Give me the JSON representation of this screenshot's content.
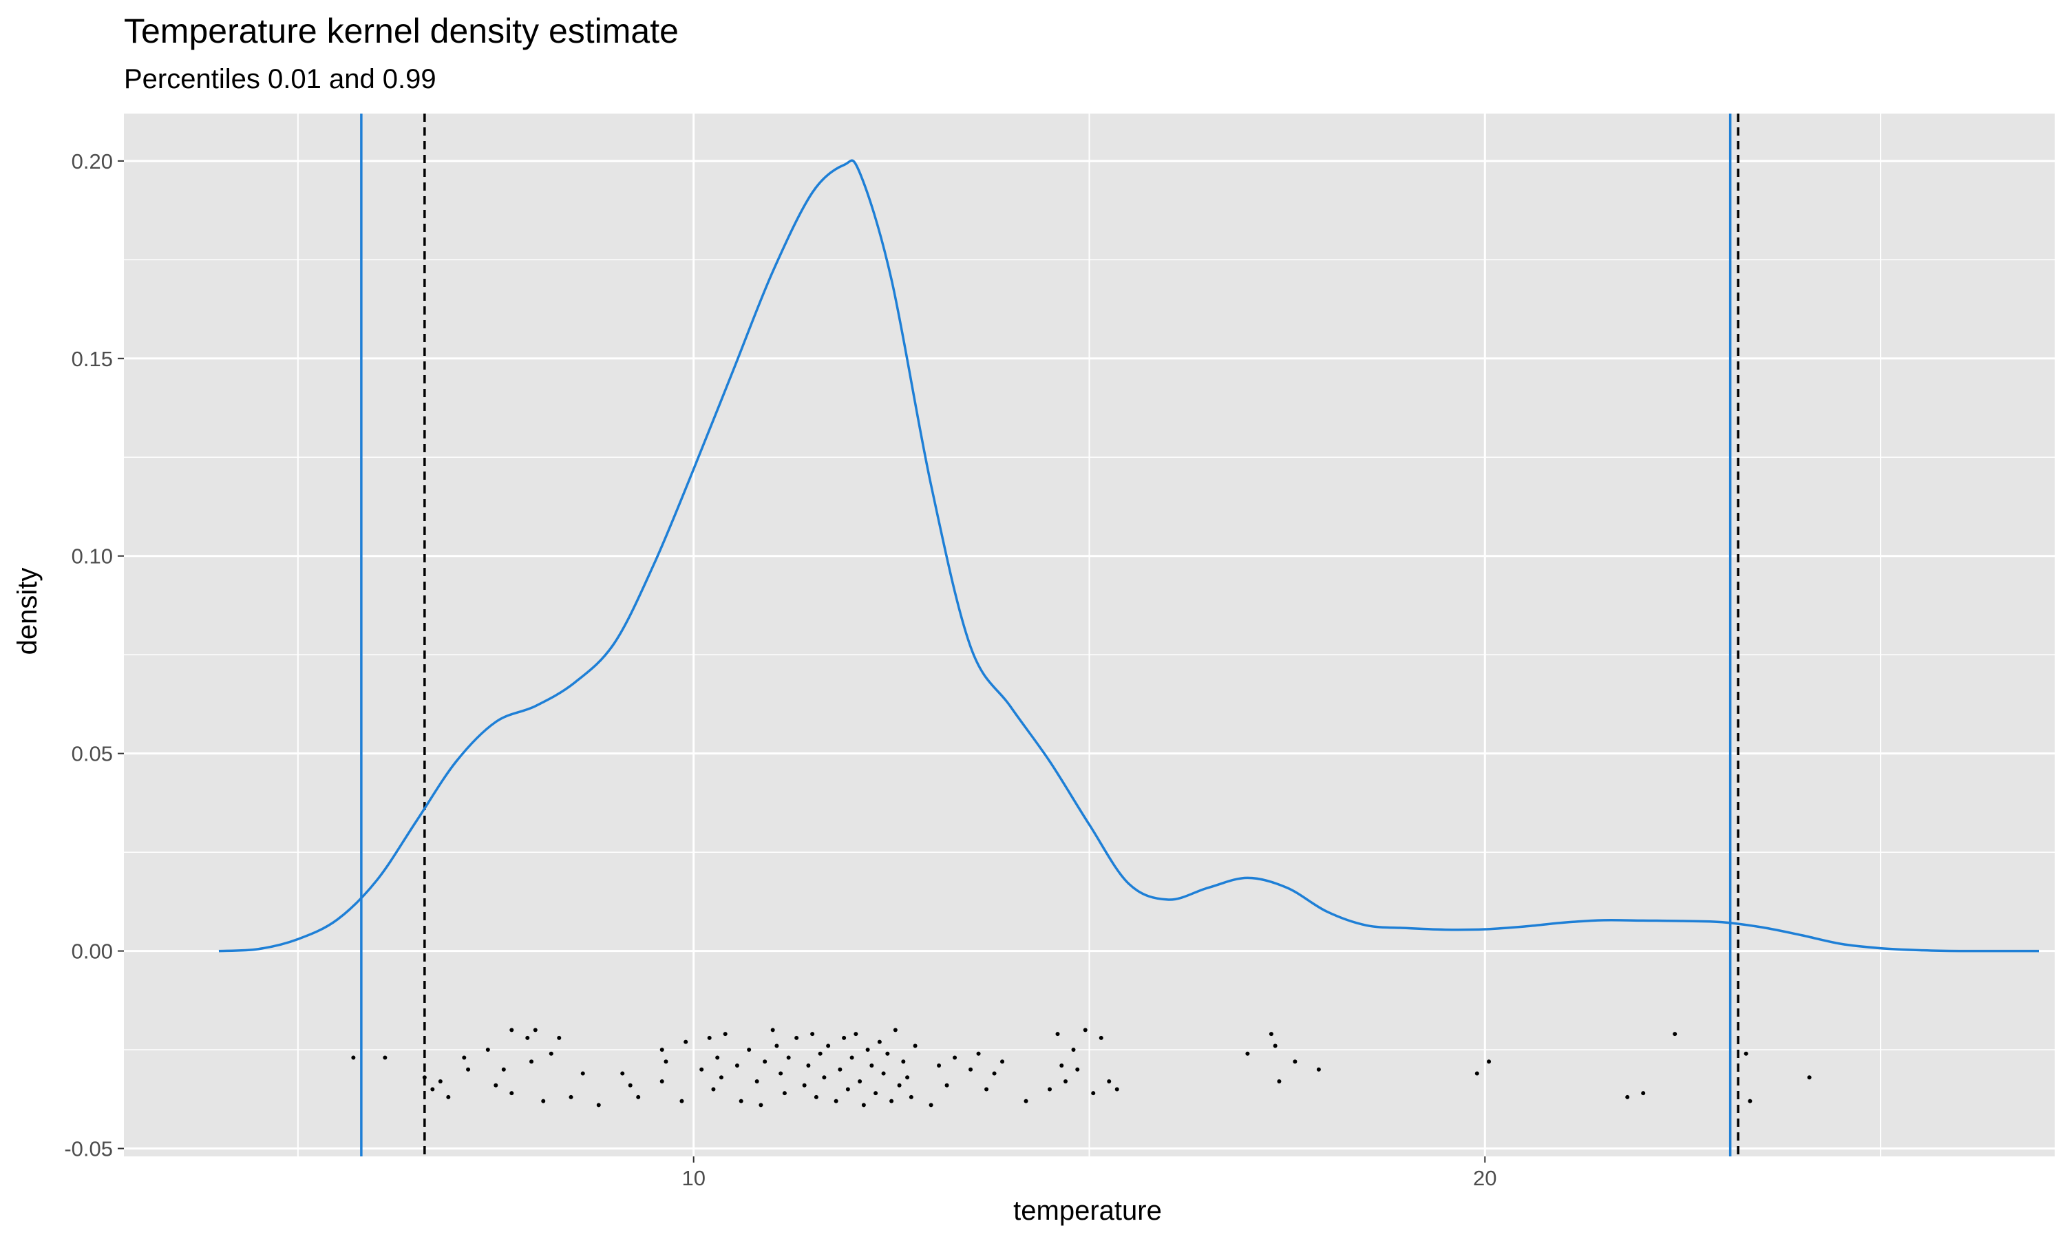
{
  "chart_data": {
    "type": "line",
    "title": "Temperature kernel density estimate",
    "subtitle": "Percentiles 0.01 and 0.99",
    "xlabel": "temperature",
    "ylabel": "density",
    "xlim": [
      2.8,
      27.2
    ],
    "ylim": [
      -0.052,
      0.212
    ],
    "x_ticks": [
      10,
      20
    ],
    "x_tick_labels": [
      "10",
      "20"
    ],
    "y_ticks": [
      -0.05,
      0,
      0.05,
      0.1,
      0.15,
      0.2
    ],
    "y_tick_labels": [
      "-0.05",
      "0.00",
      "0.05",
      "0.10",
      "0.15",
      "0.20"
    ],
    "grid": true,
    "colors": {
      "panel": "#e5e5e5",
      "grid": "#ffffff",
      "density": "#1e7fd6",
      "percentile_lines": "#1e7fd6",
      "reference_lines": "#000000",
      "points": "#000000"
    },
    "series": [
      {
        "kind": "density-curve",
        "x": [
          4.0,
          4.5,
          5.0,
          5.5,
          6.0,
          6.5,
          7.0,
          7.5,
          8.0,
          8.5,
          9.0,
          9.5,
          10.0,
          10.5,
          11.0,
          11.5,
          11.9,
          12.1,
          12.5,
          13.0,
          13.5,
          14.0,
          14.5,
          15.0,
          15.5,
          16.0,
          16.5,
          17.0,
          17.5,
          18.0,
          18.5,
          19.0,
          19.5,
          20.0,
          20.5,
          21.0,
          21.5,
          22.0,
          22.5,
          23.0,
          23.5,
          24.0,
          24.5,
          25.0,
          25.5,
          26.0,
          26.5,
          27.0
        ],
        "y": [
          0.0,
          0.0005,
          0.003,
          0.008,
          0.018,
          0.033,
          0.048,
          0.058,
          0.062,
          0.068,
          0.078,
          0.098,
          0.122,
          0.147,
          0.172,
          0.192,
          0.199,
          0.197,
          0.17,
          0.118,
          0.077,
          0.062,
          0.048,
          0.032,
          0.017,
          0.013,
          0.016,
          0.0185,
          0.016,
          0.01,
          0.0065,
          0.0058,
          0.0054,
          0.0055,
          0.0062,
          0.0072,
          0.0078,
          0.0077,
          0.0076,
          0.0073,
          0.006,
          0.004,
          0.0018,
          0.0007,
          0.0002,
          0.0,
          0.0,
          0.0
        ]
      },
      {
        "kind": "percentile-line",
        "x": [
          5.8,
          23.1
        ]
      },
      {
        "kind": "reference-line",
        "x": [
          6.6,
          23.2
        ]
      },
      {
        "kind": "jittered-points",
        "x": [
          5.7,
          6.1,
          6.6,
          6.7,
          6.8,
          6.9,
          7.1,
          7.15,
          7.4,
          7.5,
          7.6,
          7.7,
          7.7,
          7.9,
          7.95,
          8.0,
          8.1,
          8.2,
          8.3,
          8.45,
          8.6,
          8.8,
          9.1,
          9.2,
          9.3,
          9.6,
          9.6,
          9.65,
          9.85,
          9.9,
          10.1,
          10.2,
          10.25,
          10.3,
          10.35,
          10.4,
          10.55,
          10.6,
          10.7,
          10.8,
          10.85,
          10.9,
          11.0,
          11.05,
          11.1,
          11.15,
          11.2,
          11.3,
          11.4,
          11.45,
          11.5,
          11.55,
          11.6,
          11.65,
          11.7,
          11.8,
          11.85,
          11.9,
          11.95,
          12.0,
          12.05,
          12.1,
          12.15,
          12.2,
          12.25,
          12.3,
          12.35,
          12.4,
          12.45,
          12.5,
          12.55,
          12.6,
          12.65,
          12.7,
          12.75,
          12.8,
          13.0,
          13.1,
          13.2,
          13.3,
          13.5,
          13.6,
          13.7,
          13.8,
          13.9,
          14.2,
          14.5,
          14.6,
          14.65,
          14.7,
          14.8,
          14.85,
          14.95,
          15.05,
          15.15,
          15.25,
          15.35,
          17.0,
          17.3,
          17.35,
          17.4,
          17.6,
          17.9,
          19.9,
          20.05,
          21.8,
          22.0,
          22.4,
          23.3,
          23.35,
          24.1
        ],
        "y": [
          -0.027,
          -0.027,
          -0.032,
          -0.035,
          -0.033,
          -0.037,
          -0.027,
          -0.03,
          -0.025,
          -0.034,
          -0.03,
          -0.036,
          -0.02,
          -0.022,
          -0.028,
          -0.02,
          -0.038,
          -0.026,
          -0.022,
          -0.037,
          -0.031,
          -0.039,
          -0.031,
          -0.034,
          -0.037,
          -0.025,
          -0.033,
          -0.028,
          -0.038,
          -0.023,
          -0.03,
          -0.022,
          -0.035,
          -0.027,
          -0.032,
          -0.021,
          -0.029,
          -0.038,
          -0.025,
          -0.033,
          -0.039,
          -0.028,
          -0.02,
          -0.024,
          -0.031,
          -0.036,
          -0.027,
          -0.022,
          -0.034,
          -0.029,
          -0.021,
          -0.037,
          -0.026,
          -0.032,
          -0.024,
          -0.038,
          -0.03,
          -0.022,
          -0.035,
          -0.027,
          -0.021,
          -0.033,
          -0.039,
          -0.025,
          -0.029,
          -0.036,
          -0.023,
          -0.031,
          -0.026,
          -0.038,
          -0.02,
          -0.034,
          -0.028,
          -0.032,
          -0.037,
          -0.024,
          -0.039,
          -0.029,
          -0.034,
          -0.027,
          -0.03,
          -0.026,
          -0.035,
          -0.031,
          -0.028,
          -0.038,
          -0.035,
          -0.021,
          -0.029,
          -0.033,
          -0.025,
          -0.03,
          -0.02,
          -0.036,
          -0.022,
          -0.033,
          -0.035,
          -0.026,
          -0.021,
          -0.024,
          -0.033,
          -0.028,
          -0.03,
          -0.031,
          -0.028,
          -0.037,
          -0.036,
          -0.021,
          -0.026,
          -0.038,
          -0.032
        ]
      }
    ]
  }
}
